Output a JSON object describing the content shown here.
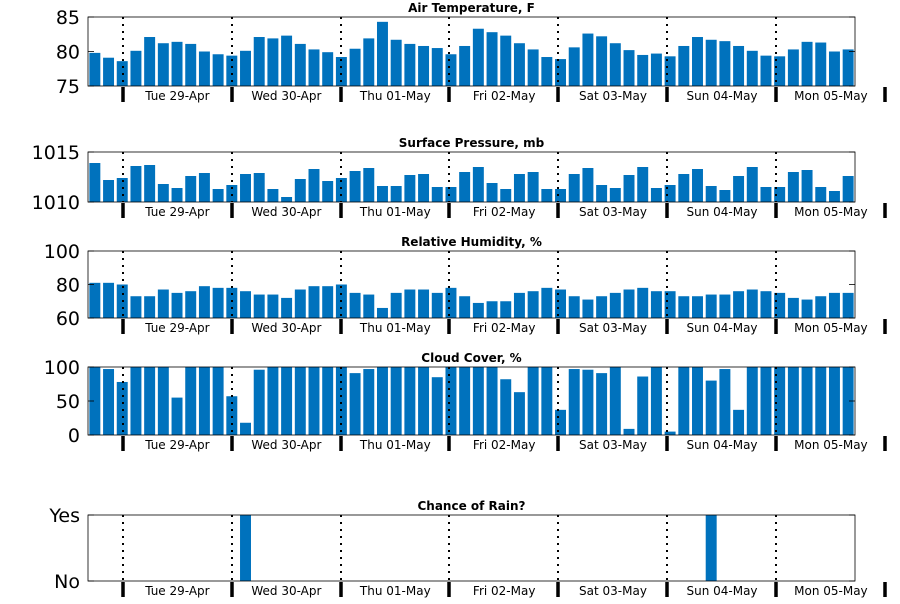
{
  "colors": {
    "bar": "#0072BD",
    "axis": "#000000",
    "background": "#ffffff"
  },
  "day_labels": [
    "Tue 29-Apr",
    "Wed 30-Apr",
    "Thu 01-May",
    "Fri 02-May",
    "Sat 03-May",
    "Sun 04-May",
    "Mon 05-May"
  ],
  "chart_data": [
    {
      "type": "bar",
      "title": "Air Temperature, F",
      "ylim": [
        75,
        85
      ],
      "yticks": [
        75,
        80,
        85
      ],
      "grid": false,
      "day_separators": "dotted",
      "values": [
        79.8,
        79.1,
        78.6,
        80.1,
        82.1,
        81.2,
        81.4,
        81.1,
        80.0,
        79.6,
        79.4,
        80.1,
        82.1,
        81.9,
        82.3,
        81.1,
        80.3,
        79.9,
        79.2,
        80.4,
        81.9,
        84.3,
        81.7,
        81.1,
        80.8,
        80.5,
        79.6,
        80.8,
        83.3,
        82.8,
        82.3,
        81.2,
        80.3,
        79.2,
        78.9,
        80.6,
        82.6,
        82.2,
        81.2,
        80.2,
        79.5,
        79.7,
        79.3,
        80.8,
        82.1,
        81.7,
        81.5,
        80.8,
        80.1,
        79.4,
        79.3,
        80.3,
        81.4,
        81.3,
        80.0,
        80.3
      ]
    },
    {
      "type": "bar",
      "title": "Surface Pressure, mb",
      "ylim": [
        1010,
        1015
      ],
      "yticks": [
        1010,
        1015
      ],
      "grid": false,
      "day_separators": "dotted",
      "values": [
        1013.9,
        1012.2,
        1012.4,
        1013.6,
        1013.7,
        1011.8,
        1011.4,
        1012.6,
        1012.9,
        1011.3,
        1011.7,
        1012.8,
        1012.9,
        1011.3,
        1010.5,
        1012.3,
        1013.3,
        1012.1,
        1012.4,
        1013.1,
        1013.4,
        1011.6,
        1011.6,
        1012.7,
        1012.8,
        1011.5,
        1011.5,
        1013.0,
        1013.5,
        1011.9,
        1011.3,
        1012.8,
        1013.0,
        1011.3,
        1011.3,
        1012.8,
        1013.4,
        1011.7,
        1011.4,
        1012.7,
        1013.5,
        1011.4,
        1011.7,
        1012.8,
        1013.3,
        1011.6,
        1011.2,
        1012.6,
        1013.5,
        1011.5,
        1011.5,
        1013.0,
        1013.2,
        1011.5,
        1011.1,
        1012.6
      ]
    },
    {
      "type": "bar",
      "title": "Relative Humidity, %",
      "ylim": [
        60,
        100
      ],
      "yticks": [
        60,
        80,
        100
      ],
      "grid": false,
      "day_separators": "dotted",
      "values": [
        81,
        81,
        80,
        73,
        73,
        77,
        75,
        76,
        79,
        78,
        78,
        76,
        74,
        74,
        72,
        77,
        79,
        79,
        80,
        75,
        74,
        66,
        75,
        77,
        77,
        75,
        78,
        73,
        69,
        70,
        70,
        75,
        76,
        78,
        77,
        73,
        71,
        73,
        75,
        77,
        78,
        76,
        76,
        73,
        73,
        74,
        74,
        76,
        77,
        76,
        75,
        72,
        71,
        73,
        75,
        75
      ]
    },
    {
      "type": "bar",
      "title": "Cloud Cover, %",
      "ylim": [
        0,
        100
      ],
      "yticks": [
        0,
        50,
        100
      ],
      "grid": false,
      "day_separators": "dotted",
      "values": [
        100,
        97,
        78,
        100,
        100,
        100,
        55,
        100,
        100,
        100,
        57,
        18,
        96,
        100,
        100,
        100,
        100,
        100,
        100,
        91,
        97,
        100,
        100,
        100,
        100,
        85,
        100,
        100,
        100,
        100,
        82,
        63,
        100,
        100,
        37,
        97,
        96,
        91,
        100,
        9,
        86,
        100,
        5,
        100,
        100,
        80,
        97,
        37,
        100,
        100,
        100,
        100,
        100,
        100,
        100,
        100
      ]
    },
    {
      "type": "bar",
      "title": "Chance of Rain?",
      "ylim": [
        0,
        1
      ],
      "yticks": [
        "No",
        "Yes"
      ],
      "grid": false,
      "day_separators": "dotted",
      "values": [
        0,
        0,
        0,
        0,
        0,
        0,
        0,
        0,
        0,
        0,
        0,
        1,
        0,
        0,
        0,
        0,
        0,
        0,
        0,
        0,
        0,
        0,
        0,
        0,
        0,
        0,
        0,
        0,
        0,
        0,
        0,
        0,
        0,
        0,
        0,
        0,
        0,
        0,
        0,
        0,
        0,
        0,
        0,
        0,
        0,
        1,
        0,
        0,
        0,
        0,
        0,
        0,
        0,
        0,
        0,
        0
      ]
    }
  ]
}
